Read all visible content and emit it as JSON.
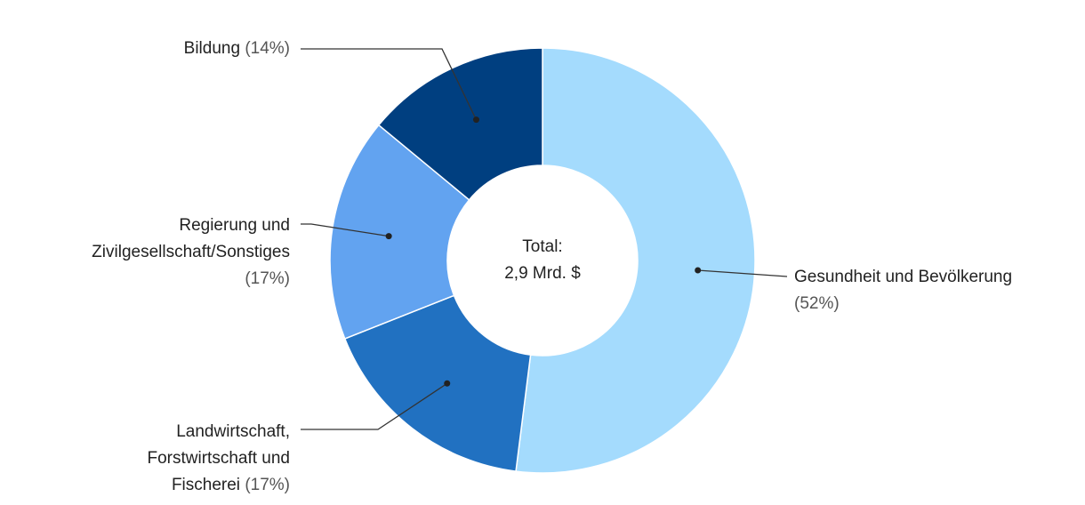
{
  "chart_data": {
    "type": "donut",
    "categories": [
      "Gesundheit und Bevölkerung",
      "Landwirtschaft,\nForstwirtschaft und\nFischerei",
      "Regierung und\nZivilgesellschaft/Sonstiges",
      "Bildung"
    ],
    "values": [
      52,
      17,
      17,
      14
    ],
    "value_labels": [
      "(52%)",
      "(17%)",
      "(17%)",
      "(14%)"
    ],
    "colors": [
      "#a4dbfd",
      "#2171c1",
      "#62a3f0",
      "#003f80"
    ],
    "center_text": [
      "Total:",
      "2,9 Mrd. $"
    ]
  }
}
